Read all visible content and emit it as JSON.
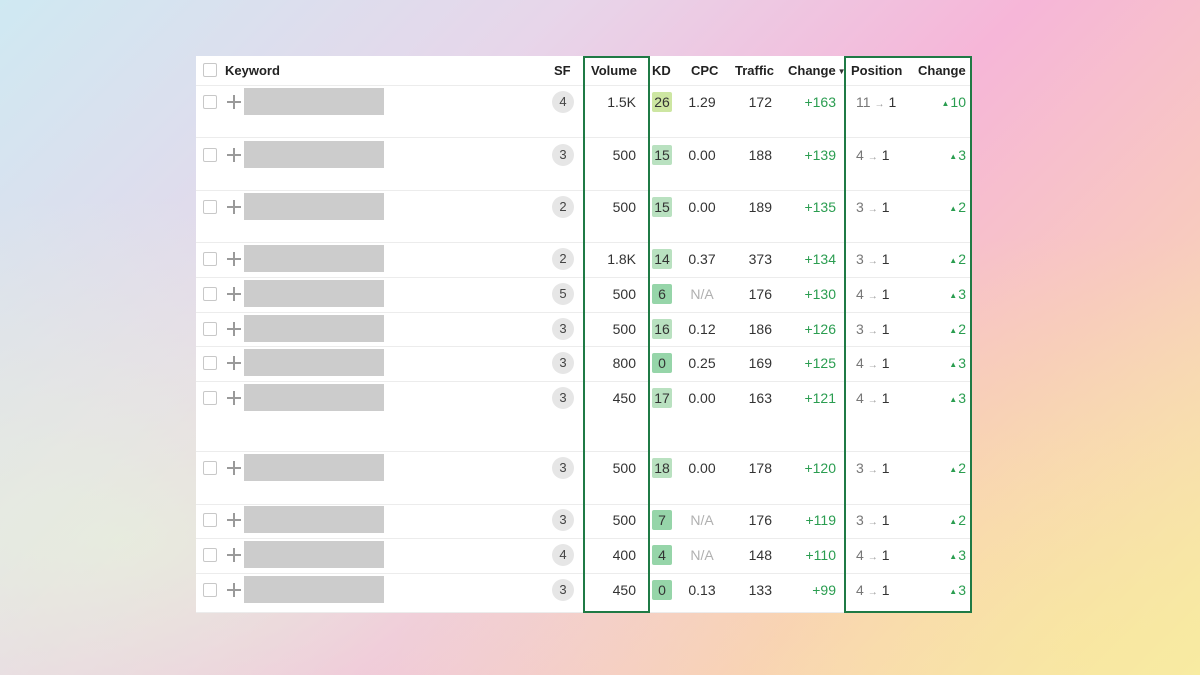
{
  "headers": {
    "keyword": "Keyword",
    "sf": "SF",
    "volume": "Volume",
    "kd": "KD",
    "cpc": "CPC",
    "traffic": "Traffic",
    "change": "Change",
    "position": "Position",
    "position_change": "Change"
  },
  "kd_colors": {
    "yellow_green": "#cde6a2",
    "light_green": "#b9e1c0",
    "green": "#96d5a9"
  },
  "rows": [
    {
      "sf": "4",
      "volume": "1.5K",
      "kd": "26",
      "kd_color": "yellow_green",
      "cpc": "1.29",
      "traffic": "172",
      "change": "+163",
      "pos_from": "11",
      "pos_to": "1",
      "pos_change": "10"
    },
    {
      "sf": "3",
      "volume": "500",
      "kd": "15",
      "kd_color": "light_green",
      "cpc": "0.00",
      "traffic": "188",
      "change": "+139",
      "pos_from": "4",
      "pos_to": "1",
      "pos_change": "3"
    },
    {
      "sf": "2",
      "volume": "500",
      "kd": "15",
      "kd_color": "light_green",
      "cpc": "0.00",
      "traffic": "189",
      "change": "+135",
      "pos_from": "3",
      "pos_to": "1",
      "pos_change": "2"
    },
    {
      "sf": "2",
      "volume": "1.8K",
      "kd": "14",
      "kd_color": "light_green",
      "cpc": "0.37",
      "traffic": "373",
      "change": "+134",
      "pos_from": "3",
      "pos_to": "1",
      "pos_change": "2"
    },
    {
      "sf": "5",
      "volume": "500",
      "kd": "6",
      "kd_color": "green",
      "cpc": "N/A",
      "traffic": "176",
      "change": "+130",
      "pos_from": "4",
      "pos_to": "1",
      "pos_change": "3"
    },
    {
      "sf": "3",
      "volume": "500",
      "kd": "16",
      "kd_color": "light_green",
      "cpc": "0.12",
      "traffic": "186",
      "change": "+126",
      "pos_from": "3",
      "pos_to": "1",
      "pos_change": "2"
    },
    {
      "sf": "3",
      "volume": "800",
      "kd": "0",
      "kd_color": "green",
      "cpc": "0.25",
      "traffic": "169",
      "change": "+125",
      "pos_from": "4",
      "pos_to": "1",
      "pos_change": "3"
    },
    {
      "sf": "3",
      "volume": "450",
      "kd": "17",
      "kd_color": "light_green",
      "cpc": "0.00",
      "traffic": "163",
      "change": "+121",
      "pos_from": "4",
      "pos_to": "1",
      "pos_change": "3"
    },
    {
      "sf": "3",
      "volume": "500",
      "kd": "18",
      "kd_color": "light_green",
      "cpc": "0.00",
      "traffic": "178",
      "change": "+120",
      "pos_from": "3",
      "pos_to": "1",
      "pos_change": "2"
    },
    {
      "sf": "3",
      "volume": "500",
      "kd": "7",
      "kd_color": "green",
      "cpc": "N/A",
      "traffic": "176",
      "change": "+119",
      "pos_from": "3",
      "pos_to": "1",
      "pos_change": "2"
    },
    {
      "sf": "4",
      "volume": "400",
      "kd": "4",
      "kd_color": "green",
      "cpc": "N/A",
      "traffic": "148",
      "change": "+110",
      "pos_from": "4",
      "pos_to": "1",
      "pos_change": "3"
    },
    {
      "sf": "3",
      "volume": "450",
      "kd": "0",
      "kd_color": "green",
      "cpc": "0.13",
      "traffic": "133",
      "change": "+99",
      "pos_from": "4",
      "pos_to": "1",
      "pos_change": "3"
    }
  ]
}
